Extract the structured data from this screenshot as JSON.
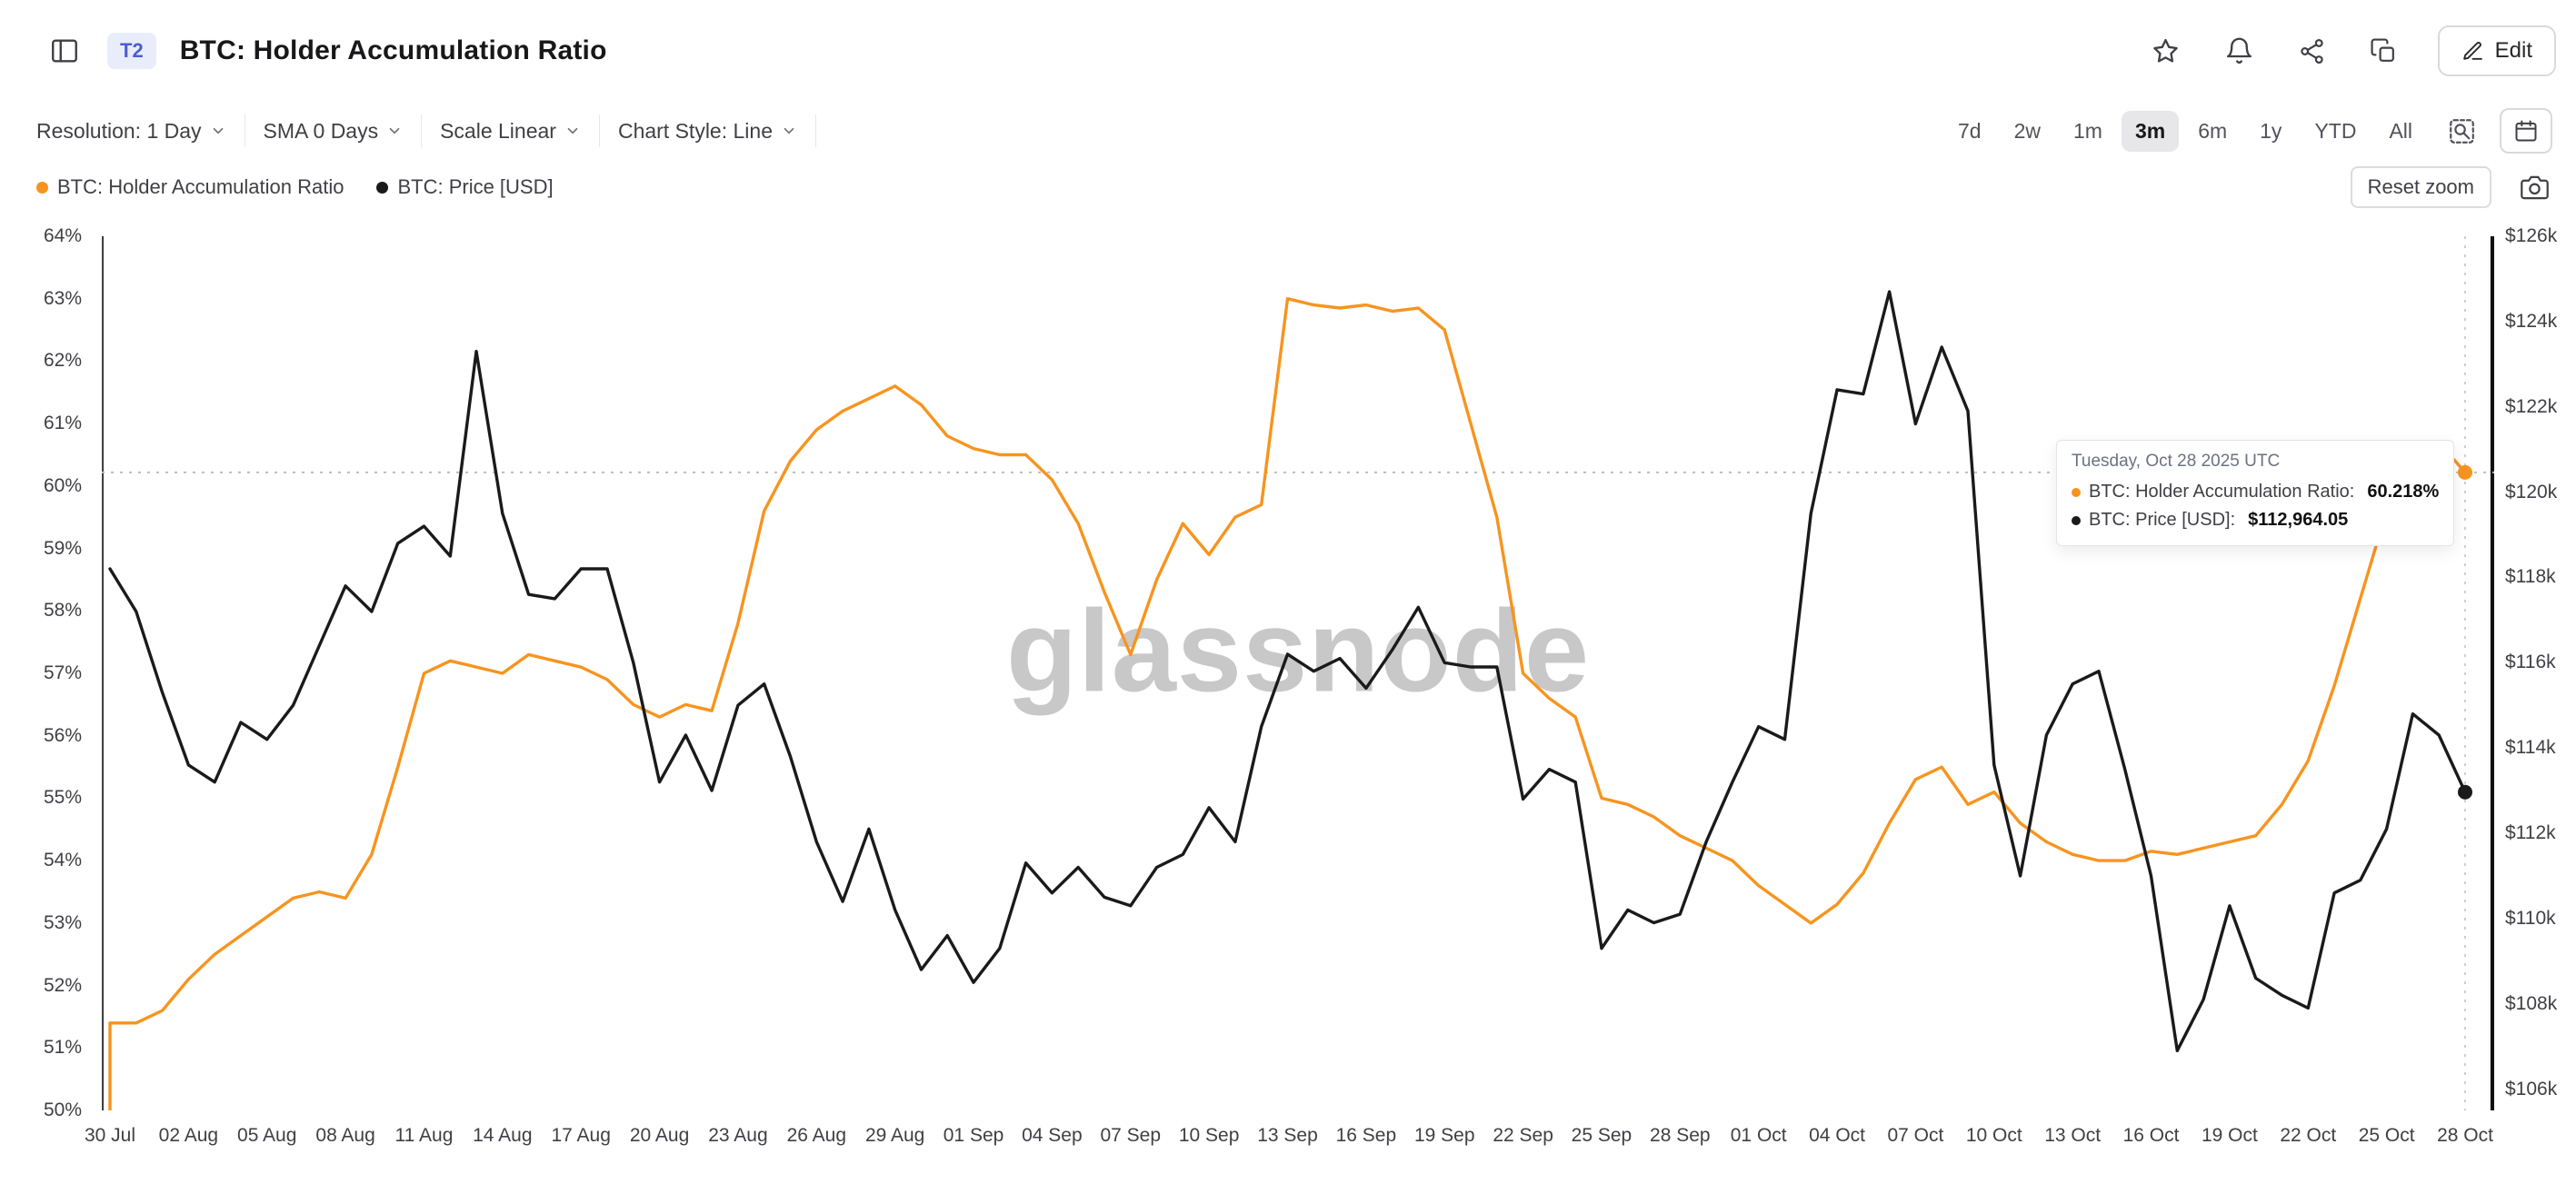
{
  "header": {
    "badge": "T2",
    "title": "BTC: Holder Accumulation Ratio",
    "edit_label": "Edit"
  },
  "toolbar": {
    "dropdowns": [
      {
        "label": "Resolution: 1 Day"
      },
      {
        "label": "SMA 0 Days"
      },
      {
        "label": "Scale Linear"
      },
      {
        "label": "Chart Style: Line"
      }
    ],
    "ranges": [
      "7d",
      "2w",
      "1m",
      "3m",
      "6m",
      "1y",
      "YTD",
      "All"
    ],
    "active_range": "3m"
  },
  "legend": {
    "items": [
      {
        "label": "BTC: Holder Accumulation Ratio",
        "color": "#F7941E"
      },
      {
        "label": "BTC: Price [USD]",
        "color": "#1a1a1a"
      }
    ],
    "reset_zoom_label": "Reset zoom"
  },
  "tooltip": {
    "date": "Tuesday, Oct 28 2025 UTC",
    "rows": [
      {
        "label": "BTC: Holder Accumulation Ratio:",
        "value": "60.218%",
        "color": "#F7941E"
      },
      {
        "label": "BTC: Price [USD]:",
        "value": "$112,964.05",
        "color": "#1a1a1a"
      }
    ]
  },
  "watermark": "glassnode",
  "icons": {
    "header": [
      "panel-left",
      "star",
      "bell",
      "share",
      "duplicate",
      "edit-pencil"
    ],
    "toolbar": [
      "chevron-down",
      "zoom-area",
      "calendar"
    ],
    "legend_row": [
      "camera"
    ]
  },
  "chart_data": {
    "type": "line",
    "title": "BTC: Holder Accumulation Ratio",
    "x_start": "30 Jul 2025",
    "x_end": "28 Oct 2025",
    "x_interval": "1 day",
    "x_tick_every_n_points": 3,
    "x_tick_labels": [
      "30 Jul",
      "02 Aug",
      "05 Aug",
      "08 Aug",
      "11 Aug",
      "14 Aug",
      "17 Aug",
      "20 Aug",
      "23 Aug",
      "26 Aug",
      "29 Aug",
      "01 Sep",
      "04 Sep",
      "07 Sep",
      "10 Sep",
      "13 Sep",
      "16 Sep",
      "19 Sep",
      "22 Sep",
      "25 Sep",
      "28 Sep",
      "01 Oct",
      "04 Oct",
      "07 Oct",
      "10 Oct",
      "13 Oct",
      "16 Oct",
      "19 Oct",
      "22 Oct",
      "25 Oct",
      "28 Oct"
    ],
    "left_axis": {
      "label": "BTC: Holder Accumulation Ratio (%)",
      "min": 50,
      "max": 64,
      "tick_labels": [
        "64%",
        "63%",
        "62%",
        "61%",
        "60%",
        "59%",
        "58%",
        "57%",
        "56%",
        "55%",
        "54%",
        "53%",
        "52%",
        "51%",
        "50%"
      ],
      "tick_values": [
        64,
        63,
        62,
        61,
        60,
        59,
        58,
        57,
        56,
        55,
        54,
        53,
        52,
        51,
        50
      ]
    },
    "right_axis": {
      "label": "BTC: Price [USD]",
      "top": 126,
      "bottom": 105.5,
      "unit": "thousand USD",
      "tick_labels": [
        "$126k",
        "$124k",
        "$122k",
        "$120k",
        "$118k",
        "$116k",
        "$114k",
        "$112k",
        "$110k",
        "$108k",
        "$106k"
      ],
      "tick_values": [
        126,
        124,
        122,
        120,
        118,
        116,
        114,
        112,
        110,
        108,
        106
      ]
    },
    "grid": "off",
    "legend_position": "top-left",
    "current_value_line_pct": 60.218,
    "hover_index": 90,
    "series": [
      {
        "name": "BTC: Holder Accumulation Ratio",
        "axis": "left",
        "color": "#F7941E",
        "lead_in_value": 50.0,
        "values": [
          51.4,
          51.4,
          51.6,
          52.1,
          52.5,
          52.8,
          53.1,
          53.4,
          53.5,
          53.4,
          54.1,
          55.5,
          57.0,
          57.2,
          57.1,
          57.0,
          57.3,
          57.2,
          57.1,
          56.9,
          56.5,
          56.3,
          56.5,
          56.4,
          57.8,
          59.6,
          60.4,
          60.9,
          61.2,
          61.4,
          61.6,
          61.3,
          60.8,
          60.6,
          60.5,
          60.5,
          60.1,
          59.4,
          58.3,
          57.3,
          58.5,
          59.4,
          58.9,
          59.5,
          59.7,
          63.0,
          62.9,
          62.85,
          62.9,
          62.8,
          62.85,
          62.5,
          61.0,
          59.5,
          57.0,
          56.6,
          56.3,
          55.0,
          54.9,
          54.7,
          54.4,
          54.2,
          54.0,
          53.6,
          53.3,
          53.0,
          53.3,
          53.8,
          54.6,
          55.3,
          55.5,
          54.9,
          55.1,
          54.6,
          54.3,
          54.1,
          54.0,
          54.0,
          54.15,
          54.1,
          54.2,
          54.3,
          54.4,
          54.9,
          55.6,
          56.8,
          58.2,
          59.6,
          60.5,
          60.7,
          60.218
        ]
      },
      {
        "name": "BTC: Price [USD]",
        "axis": "right",
        "color": "#1a1a1a",
        "values": [
          118.2,
          117.2,
          115.3,
          113.6,
          113.2,
          114.6,
          114.2,
          115.0,
          116.4,
          117.8,
          117.2,
          118.8,
          119.2,
          118.5,
          123.3,
          119.5,
          117.6,
          117.5,
          118.2,
          118.2,
          116.0,
          113.2,
          114.3,
          113.0,
          115.0,
          115.5,
          113.8,
          111.8,
          110.4,
          112.1,
          110.2,
          108.8,
          109.6,
          108.5,
          109.3,
          111.3,
          110.6,
          111.2,
          110.5,
          110.3,
          111.2,
          111.5,
          112.6,
          111.8,
          114.5,
          116.2,
          115.8,
          116.1,
          115.4,
          116.3,
          117.3,
          116.0,
          115.9,
          115.9,
          112.8,
          113.5,
          113.2,
          109.3,
          110.2,
          109.9,
          110.1,
          111.8,
          113.2,
          114.5,
          114.2,
          119.5,
          122.4,
          122.3,
          124.7,
          121.6,
          123.4,
          121.9,
          113.6,
          111.0,
          114.3,
          115.5,
          115.8,
          113.5,
          111.0,
          106.9,
          108.1,
          110.3,
          108.6,
          108.2,
          107.9,
          110.6,
          110.9,
          112.1,
          114.8,
          114.3,
          112.964
        ]
      }
    ]
  }
}
